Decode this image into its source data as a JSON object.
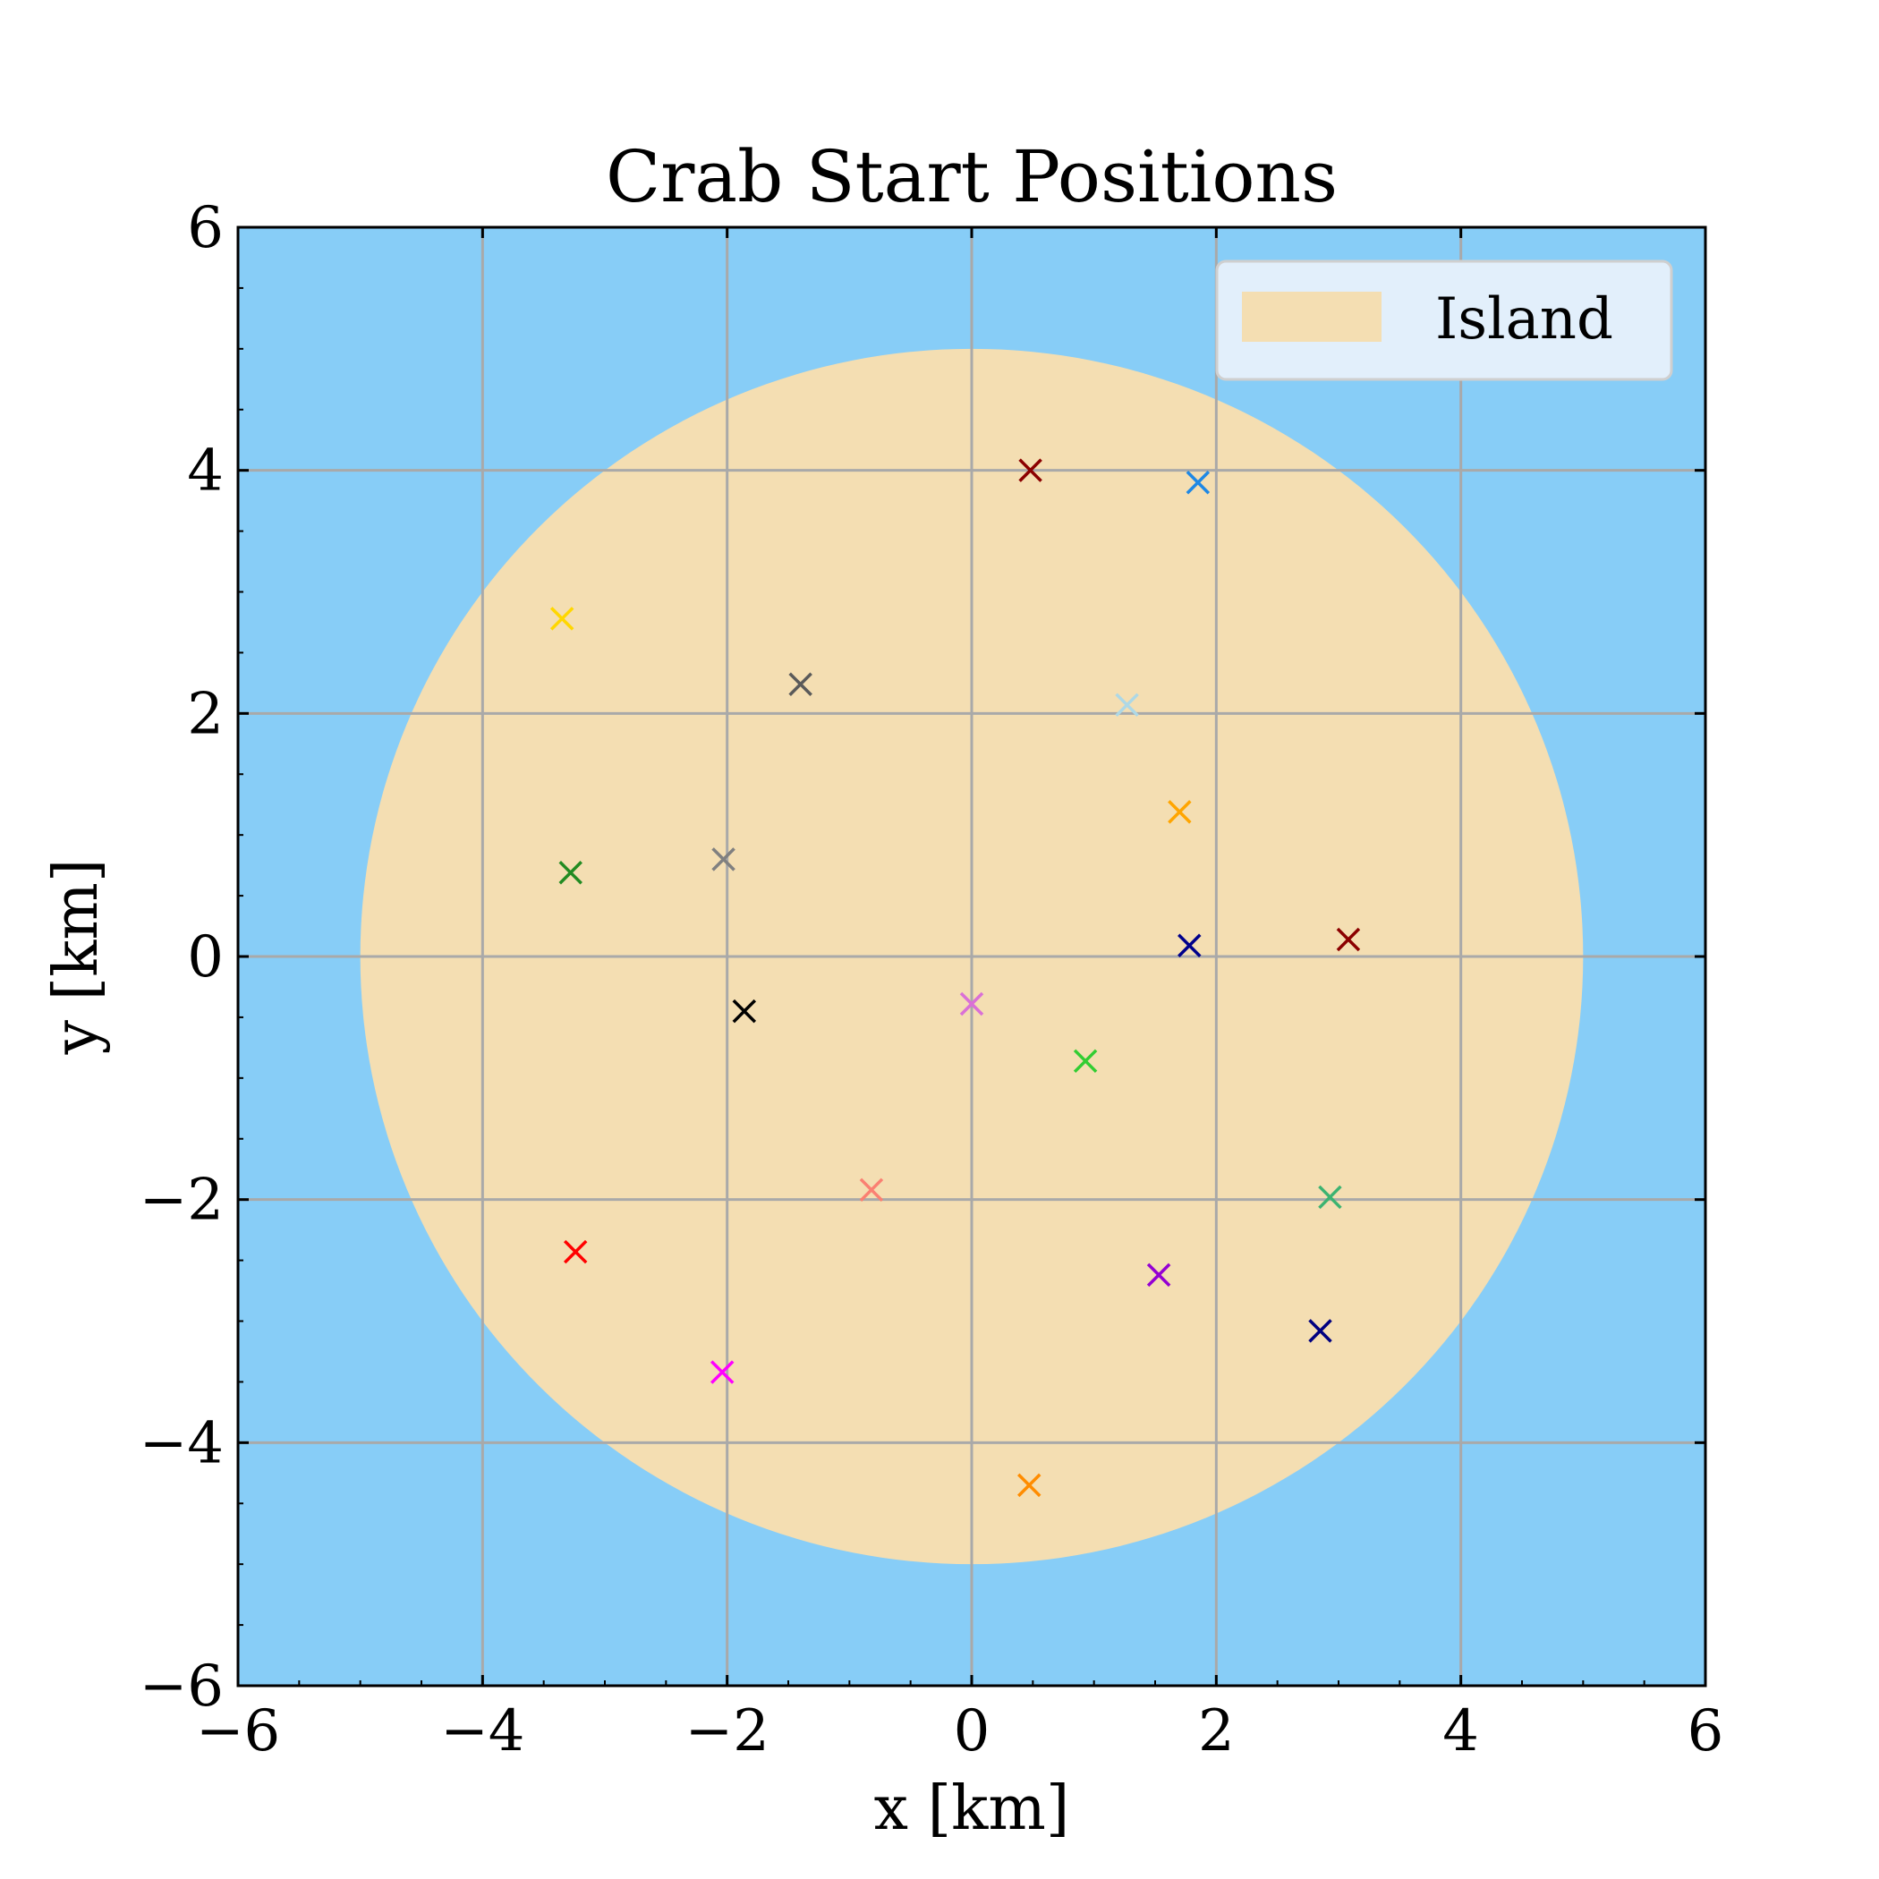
{
  "chart_data": {
    "type": "scatter",
    "title": "Crab Start Positions",
    "xlabel": "x [km]",
    "ylabel": "y [km]",
    "xlim": [
      -6,
      6
    ],
    "ylim": [
      -6,
      6
    ],
    "xticks": [
      -6,
      -4,
      -2,
      0,
      2,
      4,
      6
    ],
    "yticks": [
      -6,
      -4,
      -2,
      0,
      2,
      4,
      6
    ],
    "xtick_labels": [
      "−6",
      "−4",
      "−2",
      "0",
      "2",
      "4",
      "6"
    ],
    "ytick_labels": [
      "−6",
      "−4",
      "−2",
      "0",
      "2",
      "4",
      "6"
    ],
    "grid": true,
    "background_color": "#87cdf7",
    "island": {
      "label": "Island",
      "center": [
        0,
        0
      ],
      "radius": 5,
      "color": "#f4deb2"
    },
    "legend": {
      "position": "top-right",
      "entries": [
        "Island"
      ]
    },
    "points": [
      {
        "x": 0.48,
        "y": 4.0,
        "color": "#8b0000"
      },
      {
        "x": 1.85,
        "y": 3.9,
        "color": "#1e88e5"
      },
      {
        "x": -3.35,
        "y": 2.78,
        "color": "#ffd700"
      },
      {
        "x": -1.4,
        "y": 2.24,
        "color": "#5a5a5a"
      },
      {
        "x": 1.27,
        "y": 2.07,
        "color": "#add8e6"
      },
      {
        "x": 1.7,
        "y": 1.19,
        "color": "#ffa500"
      },
      {
        "x": -3.28,
        "y": 0.69,
        "color": "#228b22"
      },
      {
        "x": -2.03,
        "y": 0.8,
        "color": "#808080"
      },
      {
        "x": 1.78,
        "y": 0.09,
        "color": "#00008b"
      },
      {
        "x": 3.08,
        "y": 0.14,
        "color": "#8b0000"
      },
      {
        "x": -1.86,
        "y": -0.45,
        "color": "#000000"
      },
      {
        "x": 0.0,
        "y": -0.39,
        "color": "#da70d6"
      },
      {
        "x": 0.93,
        "y": -0.86,
        "color": "#32cd32"
      },
      {
        "x": -0.82,
        "y": -1.92,
        "color": "#fa8072"
      },
      {
        "x": 2.93,
        "y": -1.98,
        "color": "#3cb371"
      },
      {
        "x": -3.24,
        "y": -2.43,
        "color": "#ff0000"
      },
      {
        "x": 1.53,
        "y": -2.62,
        "color": "#9400d3"
      },
      {
        "x": 2.85,
        "y": -3.08,
        "color": "#000080"
      },
      {
        "x": -2.04,
        "y": -3.42,
        "color": "#ff00ff"
      },
      {
        "x": 0.47,
        "y": -4.35,
        "color": "#ff8c00"
      }
    ]
  }
}
